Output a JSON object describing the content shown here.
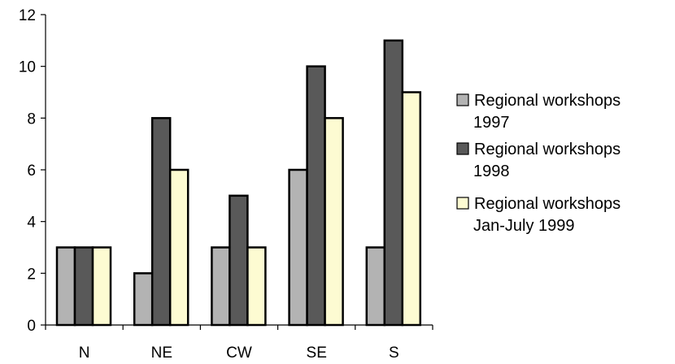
{
  "chart_data": {
    "type": "bar",
    "categories": [
      "N",
      "NE",
      "CW",
      "SE",
      "S"
    ],
    "series": [
      {
        "name": "Regional workshops 1997",
        "legend_lines": [
          "Regional workshops",
          "1997"
        ],
        "values": [
          3,
          2,
          3,
          6,
          3
        ],
        "color": "#b3b3b3"
      },
      {
        "name": "Regional workshops 1998",
        "legend_lines": [
          "Regional workshops",
          "1998"
        ],
        "values": [
          3,
          8,
          5,
          10,
          11
        ],
        "color": "#595959"
      },
      {
        "name": "Regional workshops Jan-July 1999",
        "legend_lines": [
          "Regional workshops",
          "Jan-July 1999"
        ],
        "values": [
          3,
          6,
          3,
          8,
          9
        ],
        "color": "#fdfbd2"
      }
    ],
    "y_ticks": [
      "0",
      "2",
      "4",
      "6",
      "8",
      "10",
      "12"
    ],
    "ylim": [
      0,
      12
    ],
    "grid": false,
    "legend_position": "right"
  }
}
